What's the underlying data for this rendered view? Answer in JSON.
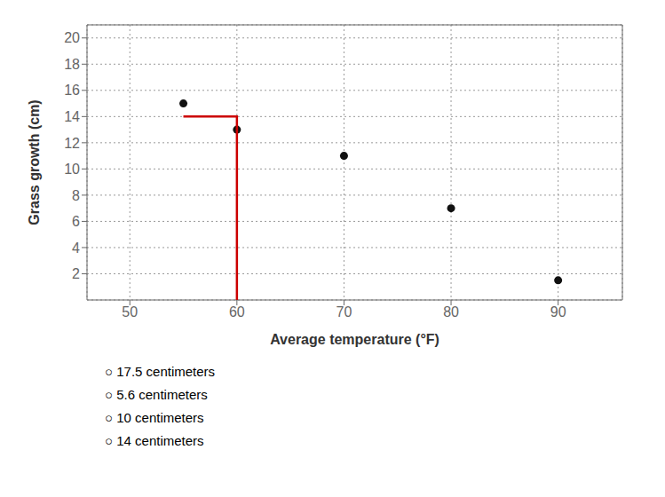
{
  "chart_data": {
    "type": "scatter",
    "xlabel": "Average temperature (°F)",
    "ylabel": "Grass growth (cm)",
    "xlim": [
      46,
      96
    ],
    "ylim": [
      0,
      21
    ],
    "xticks": [
      50,
      60,
      70,
      80,
      90
    ],
    "yticks": [
      2,
      4,
      6,
      8,
      10,
      12,
      14,
      16,
      18,
      20
    ],
    "grid": true,
    "series": [
      {
        "type": "scatter",
        "color": "#111111",
        "x": [
          55,
          60,
          70,
          80,
          90
        ],
        "values": [
          15,
          13,
          11,
          7,
          1.5
        ]
      },
      {
        "type": "line",
        "color": "#cc0000",
        "x": [
          55,
          60,
          60
        ],
        "values": [
          14,
          14,
          0
        ]
      }
    ],
    "annotations": [
      "○  17.5 centimeters",
      "○  5.6 centimeters",
      "○  10 centimeters",
      "○  14 centimeters"
    ]
  }
}
